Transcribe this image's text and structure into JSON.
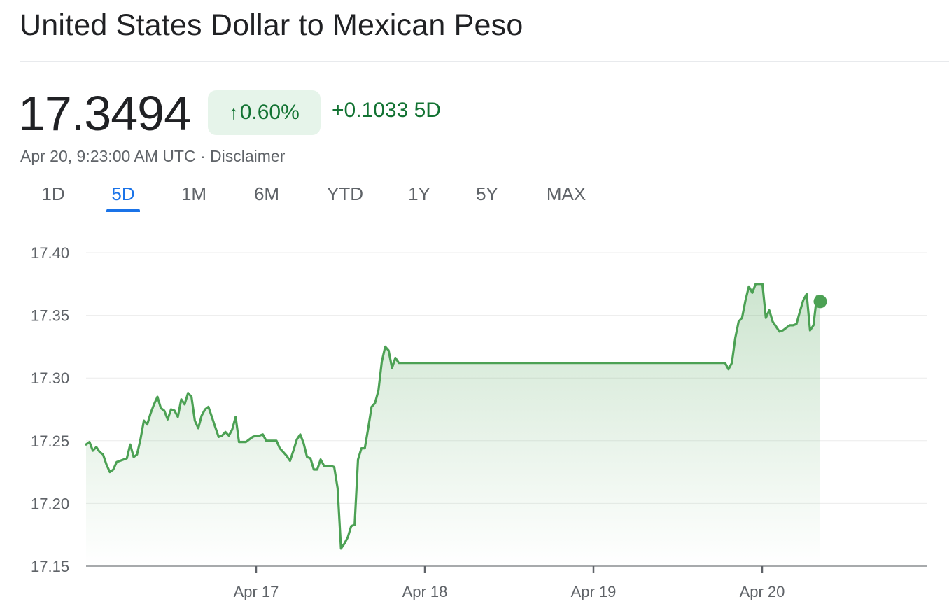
{
  "header": {
    "title": "United States Dollar to Mexican Peso"
  },
  "quote": {
    "price": "17.3494",
    "percent_change": "0.60%",
    "abs_change": "+0.1033 5D",
    "timestamp": "Apr 20, 9:23:00 AM UTC",
    "separator": " · ",
    "disclaimer": "Disclaimer",
    "arrow_icon": "arrow-up-icon"
  },
  "tabs": [
    {
      "label": "1D",
      "active": false
    },
    {
      "label": "5D",
      "active": true
    },
    {
      "label": "1M",
      "active": false
    },
    {
      "label": "6M",
      "active": false
    },
    {
      "label": "YTD",
      "active": false
    },
    {
      "label": "1Y",
      "active": false
    },
    {
      "label": "5Y",
      "active": false
    },
    {
      "label": "MAX",
      "active": false
    }
  ],
  "colors": {
    "positive": "#137333",
    "line": "#4ca154",
    "accent": "#1a73e8"
  },
  "chart_data": {
    "type": "area",
    "title": "",
    "xlabel": "",
    "ylabel": "",
    "ylim": [
      17.15,
      17.4
    ],
    "yticks": [
      "17.40",
      "17.35",
      "17.30",
      "17.25",
      "17.20",
      "17.15"
    ],
    "xticks": [
      "Apr 17",
      "Apr 18",
      "Apr 19",
      "Apr 20"
    ],
    "grid": true,
    "series": [
      {
        "values": [
          17.247,
          17.249,
          17.242,
          17.245,
          17.241,
          17.239,
          17.231,
          17.225,
          17.227,
          17.233,
          17.234,
          17.235,
          17.236,
          17.247,
          17.237,
          17.239,
          17.251,
          17.266,
          17.263,
          17.272,
          17.279,
          17.285,
          17.276,
          17.274,
          17.267,
          17.275,
          17.274,
          17.269,
          17.283,
          17.279,
          17.288,
          17.285,
          17.266,
          17.26,
          17.27,
          17.275,
          17.277,
          17.269,
          17.261,
          17.253,
          17.254,
          17.257,
          17.254,
          17.259,
          17.269,
          17.249,
          17.249,
          17.249,
          17.251,
          17.253,
          17.254,
          17.254,
          17.255,
          17.25,
          17.25,
          17.25,
          17.25,
          17.244,
          17.241,
          17.238,
          17.234,
          17.242,
          17.251,
          17.255,
          17.248,
          17.237,
          17.236,
          17.227,
          17.227,
          17.235,
          17.23,
          17.23,
          17.23,
          17.229,
          17.212,
          17.164,
          17.168,
          17.173,
          17.182,
          17.183,
          17.235,
          17.244,
          17.244,
          17.26,
          17.277,
          17.28,
          17.29,
          17.313,
          17.325,
          17.322,
          17.308,
          17.316,
          17.312,
          17.312,
          17.312,
          17.312,
          17.312,
          17.312,
          17.312,
          17.312,
          17.312,
          17.312,
          17.312,
          17.312,
          17.312,
          17.312,
          17.312,
          17.312,
          17.312,
          17.312,
          17.312,
          17.312,
          17.312,
          17.312,
          17.312,
          17.312,
          17.312,
          17.312,
          17.312,
          17.312,
          17.312,
          17.312,
          17.312,
          17.312,
          17.312,
          17.312,
          17.312,
          17.312,
          17.312,
          17.312,
          17.312,
          17.312,
          17.312,
          17.312,
          17.312,
          17.312,
          17.312,
          17.312,
          17.312,
          17.312,
          17.312,
          17.312,
          17.312,
          17.312,
          17.312,
          17.312,
          17.312,
          17.312,
          17.312,
          17.312,
          17.312,
          17.312,
          17.312,
          17.312,
          17.312,
          17.312,
          17.312,
          17.312,
          17.312,
          17.312,
          17.312,
          17.312,
          17.312,
          17.312,
          17.312,
          17.312,
          17.312,
          17.312,
          17.312,
          17.312,
          17.312,
          17.312,
          17.312,
          17.312,
          17.312,
          17.312,
          17.312,
          17.312,
          17.312,
          17.312,
          17.312,
          17.312,
          17.312,
          17.312,
          17.312,
          17.312,
          17.312,
          17.312,
          17.312,
          17.307,
          17.312,
          17.332,
          17.345,
          17.348,
          17.362,
          17.373,
          17.368,
          17.375,
          17.375,
          17.375,
          17.348,
          17.354,
          17.345,
          17.341,
          17.337,
          17.338,
          17.34,
          17.342,
          17.342,
          17.343,
          17.353,
          17.362,
          17.367,
          17.338,
          17.342,
          17.365,
          17.361
        ],
        "last_point": 17.361
      }
    ]
  }
}
